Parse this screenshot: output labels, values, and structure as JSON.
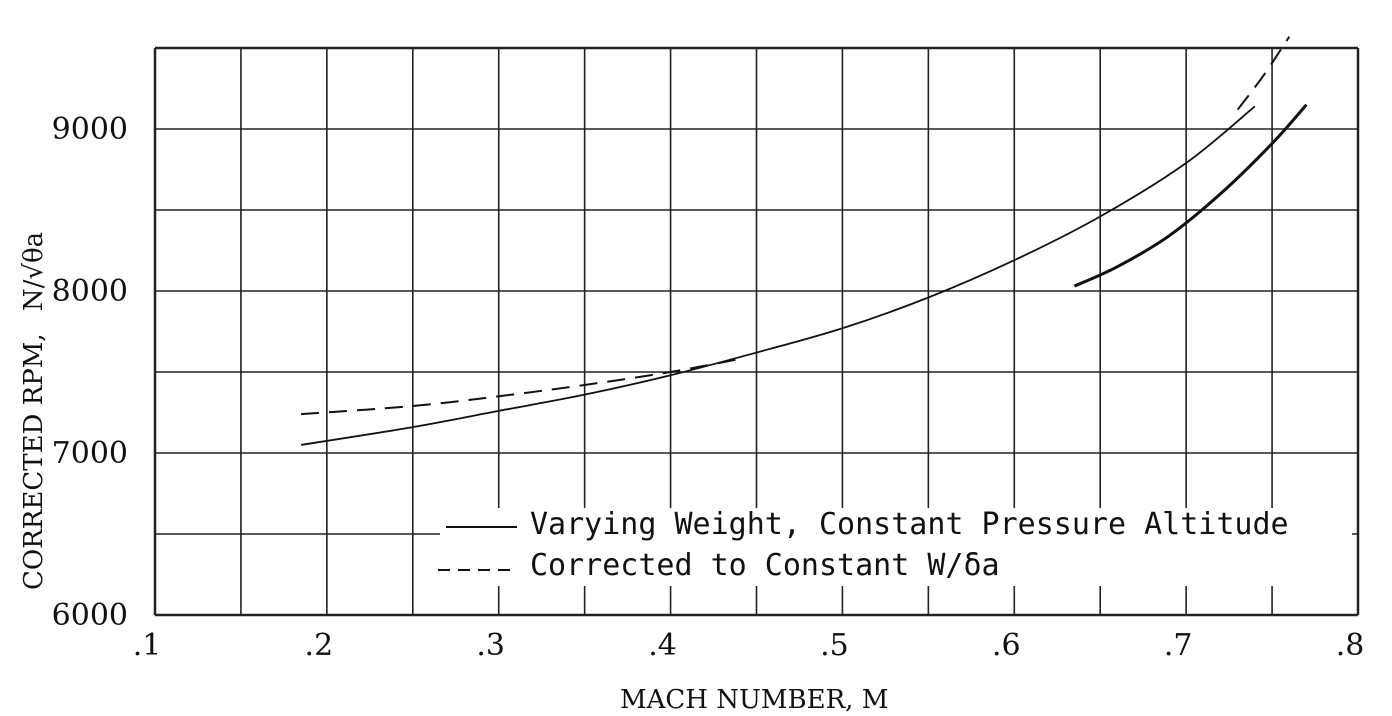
{
  "chart_data": {
    "type": "line",
    "title": "",
    "xlabel": "MACH NUMBER, M",
    "ylabel": "CORRECTED RPM,",
    "ylabel_symbol": "N/√θa",
    "xlim": [
      0.1,
      0.8
    ],
    "ylim": [
      6000,
      9500
    ],
    "x_ticks": [
      0.1,
      0.2,
      0.3,
      0.4,
      0.5,
      0.6,
      0.7,
      0.8
    ],
    "x_tick_labels": [
      ".1",
      ".2",
      ".3",
      ".4",
      ".5",
      ".6",
      ".7",
      ".8"
    ],
    "y_ticks": [
      6000,
      7000,
      8000,
      9000
    ],
    "y_tick_labels": [
      "6000",
      "7000",
      "8000",
      "9000"
    ],
    "grid": true,
    "legend_position": "lower-right",
    "series": [
      {
        "name": "Varying Weight, Constant Pressure Altitude",
        "style": "solid",
        "x": [
          0.185,
          0.25,
          0.3,
          0.35,
          0.4,
          0.45,
          0.5,
          0.55,
          0.6,
          0.65,
          0.7,
          0.74
        ],
        "y": [
          7050,
          7160,
          7260,
          7360,
          7480,
          7620,
          7770,
          7960,
          8190,
          8460,
          8790,
          9140
        ]
      },
      {
        "name": "",
        "style": "solid-heavy",
        "x": [
          0.635,
          0.66,
          0.69,
          0.72,
          0.75,
          0.77
        ],
        "y": [
          8030,
          8150,
          8340,
          8600,
          8910,
          9150
        ]
      },
      {
        "name": "Corrected to Constant W/δa",
        "style": "dashed",
        "x": [
          0.185,
          0.25,
          0.3,
          0.35,
          0.4,
          0.44
        ],
        "y": [
          7240,
          7290,
          7350,
          7420,
          7500,
          7580
        ]
      },
      {
        "name": "",
        "style": "dashed",
        "x": [
          0.73,
          0.745,
          0.76
        ],
        "y": [
          9120,
          9330,
          9570
        ]
      }
    ]
  }
}
